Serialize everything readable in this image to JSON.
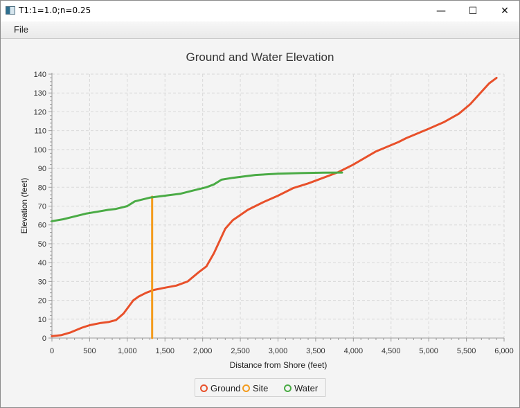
{
  "window": {
    "title": "T1:1=1.0;n=0.25",
    "minimize_glyph": "—",
    "maximize_glyph": "☐",
    "close_glyph": "✕"
  },
  "menu": {
    "file_label": "File"
  },
  "chart_data": {
    "type": "line",
    "title": "Ground and Water Elevation",
    "xlabel": "Distance from Shore (feet)",
    "ylabel": "Elevation (feet)",
    "xlim": [
      0,
      6000
    ],
    "ylim": [
      0,
      140
    ],
    "x_ticks": [
      0,
      500,
      1000,
      1500,
      2000,
      2500,
      3000,
      3500,
      4000,
      4500,
      5000,
      5500,
      6000
    ],
    "x_tick_labels": [
      "0",
      "500",
      "1,000",
      "1,500",
      "2,000",
      "2,500",
      "3,000",
      "3,500",
      "4,000",
      "4,500",
      "5,000",
      "5,500",
      "6,000"
    ],
    "y_ticks": [
      0,
      10,
      20,
      30,
      40,
      50,
      60,
      70,
      80,
      90,
      100,
      110,
      120,
      130,
      140
    ],
    "grid": true,
    "legend_placement": "bottom",
    "series": [
      {
        "name": "Ground",
        "color": "#e8502a",
        "points": [
          [
            0,
            1
          ],
          [
            120,
            1.5
          ],
          [
            250,
            3
          ],
          [
            400,
            5.5
          ],
          [
            500,
            6.8
          ],
          [
            650,
            8
          ],
          [
            750,
            8.5
          ],
          [
            850,
            9.5
          ],
          [
            950,
            13
          ],
          [
            1080,
            20
          ],
          [
            1150,
            22
          ],
          [
            1250,
            24
          ],
          [
            1350,
            25.5
          ],
          [
            1500,
            26.7
          ],
          [
            1650,
            27.8
          ],
          [
            1800,
            30
          ],
          [
            1950,
            35
          ],
          [
            2050,
            38
          ],
          [
            2150,
            45
          ],
          [
            2300,
            58
          ],
          [
            2400,
            62.5
          ],
          [
            2600,
            68
          ],
          [
            2800,
            72
          ],
          [
            3000,
            75.5
          ],
          [
            3200,
            79.5
          ],
          [
            3400,
            82
          ],
          [
            3600,
            85
          ],
          [
            3800,
            88
          ],
          [
            4000,
            92
          ],
          [
            4300,
            99
          ],
          [
            4600,
            104
          ],
          [
            4700,
            106
          ],
          [
            5000,
            111
          ],
          [
            5200,
            114.5
          ],
          [
            5400,
            119
          ],
          [
            5550,
            124
          ],
          [
            5800,
            135
          ],
          [
            5900,
            138
          ]
        ]
      },
      {
        "name": "Site",
        "color": "#f39b1d",
        "points": [
          [
            1330,
            0
          ],
          [
            1330,
            75
          ]
        ]
      },
      {
        "name": "Water",
        "color": "#4aab45",
        "points": [
          [
            0,
            62
          ],
          [
            150,
            63
          ],
          [
            250,
            64
          ],
          [
            450,
            66
          ],
          [
            600,
            67
          ],
          [
            750,
            68
          ],
          [
            850,
            68.5
          ],
          [
            950,
            69.5
          ],
          [
            1000,
            70
          ],
          [
            1100,
            72.5
          ],
          [
            1300,
            74.5
          ],
          [
            1500,
            75.5
          ],
          [
            1700,
            76.5
          ],
          [
            1850,
            78
          ],
          [
            2050,
            80
          ],
          [
            2150,
            81.5
          ],
          [
            2250,
            84
          ],
          [
            2400,
            85
          ],
          [
            2700,
            86.5
          ],
          [
            3000,
            87.2
          ],
          [
            3300,
            87.5
          ],
          [
            3600,
            87.7
          ],
          [
            3850,
            87.8
          ]
        ]
      }
    ]
  }
}
